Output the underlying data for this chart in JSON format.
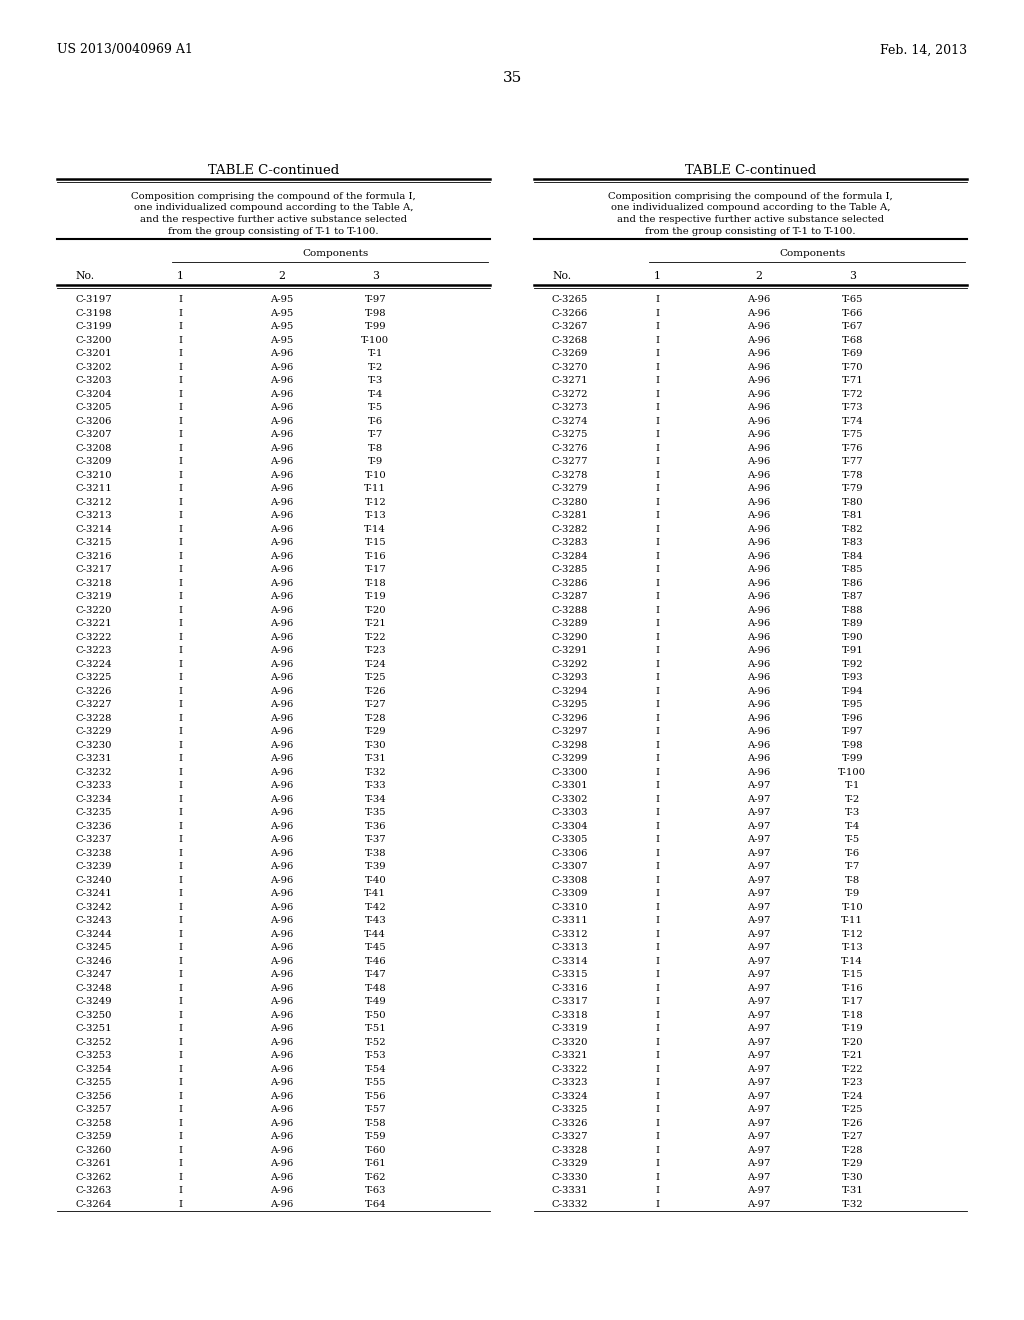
{
  "header_left": "US 2013/0040969 A1",
  "header_right": "Feb. 14, 2013",
  "page_number": "35",
  "table_title": "TABLE C-continued",
  "table_description_lines": [
    "Composition comprising the compound of the formula I,",
    "one individualized compound according to the Table A,",
    "and the respective further active substance selected",
    "from the group consisting of T-1 to T-100."
  ],
  "col_headers": [
    "No.",
    "1",
    "2",
    "3"
  ],
  "components_label": "Components",
  "left_table": [
    [
      "C-3197",
      "I",
      "A-95",
      "T-97"
    ],
    [
      "C-3198",
      "I",
      "A-95",
      "T-98"
    ],
    [
      "C-3199",
      "I",
      "A-95",
      "T-99"
    ],
    [
      "C-3200",
      "I",
      "A-95",
      "T-100"
    ],
    [
      "C-3201",
      "I",
      "A-96",
      "T-1"
    ],
    [
      "C-3202",
      "I",
      "A-96",
      "T-2"
    ],
    [
      "C-3203",
      "I",
      "A-96",
      "T-3"
    ],
    [
      "C-3204",
      "I",
      "A-96",
      "T-4"
    ],
    [
      "C-3205",
      "I",
      "A-96",
      "T-5"
    ],
    [
      "C-3206",
      "I",
      "A-96",
      "T-6"
    ],
    [
      "C-3207",
      "I",
      "A-96",
      "T-7"
    ],
    [
      "C-3208",
      "I",
      "A-96",
      "T-8"
    ],
    [
      "C-3209",
      "I",
      "A-96",
      "T-9"
    ],
    [
      "C-3210",
      "I",
      "A-96",
      "T-10"
    ],
    [
      "C-3211",
      "I",
      "A-96",
      "T-11"
    ],
    [
      "C-3212",
      "I",
      "A-96",
      "T-12"
    ],
    [
      "C-3213",
      "I",
      "A-96",
      "T-13"
    ],
    [
      "C-3214",
      "I",
      "A-96",
      "T-14"
    ],
    [
      "C-3215",
      "I",
      "A-96",
      "T-15"
    ],
    [
      "C-3216",
      "I",
      "A-96",
      "T-16"
    ],
    [
      "C-3217",
      "I",
      "A-96",
      "T-17"
    ],
    [
      "C-3218",
      "I",
      "A-96",
      "T-18"
    ],
    [
      "C-3219",
      "I",
      "A-96",
      "T-19"
    ],
    [
      "C-3220",
      "I",
      "A-96",
      "T-20"
    ],
    [
      "C-3221",
      "I",
      "A-96",
      "T-21"
    ],
    [
      "C-3222",
      "I",
      "A-96",
      "T-22"
    ],
    [
      "C-3223",
      "I",
      "A-96",
      "T-23"
    ],
    [
      "C-3224",
      "I",
      "A-96",
      "T-24"
    ],
    [
      "C-3225",
      "I",
      "A-96",
      "T-25"
    ],
    [
      "C-3226",
      "I",
      "A-96",
      "T-26"
    ],
    [
      "C-3227",
      "I",
      "A-96",
      "T-27"
    ],
    [
      "C-3228",
      "I",
      "A-96",
      "T-28"
    ],
    [
      "C-3229",
      "I",
      "A-96",
      "T-29"
    ],
    [
      "C-3230",
      "I",
      "A-96",
      "T-30"
    ],
    [
      "C-3231",
      "I",
      "A-96",
      "T-31"
    ],
    [
      "C-3232",
      "I",
      "A-96",
      "T-32"
    ],
    [
      "C-3233",
      "I",
      "A-96",
      "T-33"
    ],
    [
      "C-3234",
      "I",
      "A-96",
      "T-34"
    ],
    [
      "C-3235",
      "I",
      "A-96",
      "T-35"
    ],
    [
      "C-3236",
      "I",
      "A-96",
      "T-36"
    ],
    [
      "C-3237",
      "I",
      "A-96",
      "T-37"
    ],
    [
      "C-3238",
      "I",
      "A-96",
      "T-38"
    ],
    [
      "C-3239",
      "I",
      "A-96",
      "T-39"
    ],
    [
      "C-3240",
      "I",
      "A-96",
      "T-40"
    ],
    [
      "C-3241",
      "I",
      "A-96",
      "T-41"
    ],
    [
      "C-3242",
      "I",
      "A-96",
      "T-42"
    ],
    [
      "C-3243",
      "I",
      "A-96",
      "T-43"
    ],
    [
      "C-3244",
      "I",
      "A-96",
      "T-44"
    ],
    [
      "C-3245",
      "I",
      "A-96",
      "T-45"
    ],
    [
      "C-3246",
      "I",
      "A-96",
      "T-46"
    ],
    [
      "C-3247",
      "I",
      "A-96",
      "T-47"
    ],
    [
      "C-3248",
      "I",
      "A-96",
      "T-48"
    ],
    [
      "C-3249",
      "I",
      "A-96",
      "T-49"
    ],
    [
      "C-3250",
      "I",
      "A-96",
      "T-50"
    ],
    [
      "C-3251",
      "I",
      "A-96",
      "T-51"
    ],
    [
      "C-3252",
      "I",
      "A-96",
      "T-52"
    ],
    [
      "C-3253",
      "I",
      "A-96",
      "T-53"
    ],
    [
      "C-3254",
      "I",
      "A-96",
      "T-54"
    ],
    [
      "C-3255",
      "I",
      "A-96",
      "T-55"
    ],
    [
      "C-3256",
      "I",
      "A-96",
      "T-56"
    ],
    [
      "C-3257",
      "I",
      "A-96",
      "T-57"
    ],
    [
      "C-3258",
      "I",
      "A-96",
      "T-58"
    ],
    [
      "C-3259",
      "I",
      "A-96",
      "T-59"
    ],
    [
      "C-3260",
      "I",
      "A-96",
      "T-60"
    ],
    [
      "C-3261",
      "I",
      "A-96",
      "T-61"
    ],
    [
      "C-3262",
      "I",
      "A-96",
      "T-62"
    ],
    [
      "C-3263",
      "I",
      "A-96",
      "T-63"
    ],
    [
      "C-3264",
      "I",
      "A-96",
      "T-64"
    ]
  ],
  "right_table": [
    [
      "C-3265",
      "I",
      "A-96",
      "T-65"
    ],
    [
      "C-3266",
      "I",
      "A-96",
      "T-66"
    ],
    [
      "C-3267",
      "I",
      "A-96",
      "T-67"
    ],
    [
      "C-3268",
      "I",
      "A-96",
      "T-68"
    ],
    [
      "C-3269",
      "I",
      "A-96",
      "T-69"
    ],
    [
      "C-3270",
      "I",
      "A-96",
      "T-70"
    ],
    [
      "C-3271",
      "I",
      "A-96",
      "T-71"
    ],
    [
      "C-3272",
      "I",
      "A-96",
      "T-72"
    ],
    [
      "C-3273",
      "I",
      "A-96",
      "T-73"
    ],
    [
      "C-3274",
      "I",
      "A-96",
      "T-74"
    ],
    [
      "C-3275",
      "I",
      "A-96",
      "T-75"
    ],
    [
      "C-3276",
      "I",
      "A-96",
      "T-76"
    ],
    [
      "C-3277",
      "I",
      "A-96",
      "T-77"
    ],
    [
      "C-3278",
      "I",
      "A-96",
      "T-78"
    ],
    [
      "C-3279",
      "I",
      "A-96",
      "T-79"
    ],
    [
      "C-3280",
      "I",
      "A-96",
      "T-80"
    ],
    [
      "C-3281",
      "I",
      "A-96",
      "T-81"
    ],
    [
      "C-3282",
      "I",
      "A-96",
      "T-82"
    ],
    [
      "C-3283",
      "I",
      "A-96",
      "T-83"
    ],
    [
      "C-3284",
      "I",
      "A-96",
      "T-84"
    ],
    [
      "C-3285",
      "I",
      "A-96",
      "T-85"
    ],
    [
      "C-3286",
      "I",
      "A-96",
      "T-86"
    ],
    [
      "C-3287",
      "I",
      "A-96",
      "T-87"
    ],
    [
      "C-3288",
      "I",
      "A-96",
      "T-88"
    ],
    [
      "C-3289",
      "I",
      "A-96",
      "T-89"
    ],
    [
      "C-3290",
      "I",
      "A-96",
      "T-90"
    ],
    [
      "C-3291",
      "I",
      "A-96",
      "T-91"
    ],
    [
      "C-3292",
      "I",
      "A-96",
      "T-92"
    ],
    [
      "C-3293",
      "I",
      "A-96",
      "T-93"
    ],
    [
      "C-3294",
      "I",
      "A-96",
      "T-94"
    ],
    [
      "C-3295",
      "I",
      "A-96",
      "T-95"
    ],
    [
      "C-3296",
      "I",
      "A-96",
      "T-96"
    ],
    [
      "C-3297",
      "I",
      "A-96",
      "T-97"
    ],
    [
      "C-3298",
      "I",
      "A-96",
      "T-98"
    ],
    [
      "C-3299",
      "I",
      "A-96",
      "T-99"
    ],
    [
      "C-3300",
      "I",
      "A-96",
      "T-100"
    ],
    [
      "C-3301",
      "I",
      "A-97",
      "T-1"
    ],
    [
      "C-3302",
      "I",
      "A-97",
      "T-2"
    ],
    [
      "C-3303",
      "I",
      "A-97",
      "T-3"
    ],
    [
      "C-3304",
      "I",
      "A-97",
      "T-4"
    ],
    [
      "C-3305",
      "I",
      "A-97",
      "T-5"
    ],
    [
      "C-3306",
      "I",
      "A-97",
      "T-6"
    ],
    [
      "C-3307",
      "I",
      "A-97",
      "T-7"
    ],
    [
      "C-3308",
      "I",
      "A-97",
      "T-8"
    ],
    [
      "C-3309",
      "I",
      "A-97",
      "T-9"
    ],
    [
      "C-3310",
      "I",
      "A-97",
      "T-10"
    ],
    [
      "C-3311",
      "I",
      "A-97",
      "T-11"
    ],
    [
      "C-3312",
      "I",
      "A-97",
      "T-12"
    ],
    [
      "C-3313",
      "I",
      "A-97",
      "T-13"
    ],
    [
      "C-3314",
      "I",
      "A-97",
      "T-14"
    ],
    [
      "C-3315",
      "I",
      "A-97",
      "T-15"
    ],
    [
      "C-3316",
      "I",
      "A-97",
      "T-16"
    ],
    [
      "C-3317",
      "I",
      "A-97",
      "T-17"
    ],
    [
      "C-3318",
      "I",
      "A-97",
      "T-18"
    ],
    [
      "C-3319",
      "I",
      "A-97",
      "T-19"
    ],
    [
      "C-3320",
      "I",
      "A-97",
      "T-20"
    ],
    [
      "C-3321",
      "I",
      "A-97",
      "T-21"
    ],
    [
      "C-3322",
      "I",
      "A-97",
      "T-22"
    ],
    [
      "C-3323",
      "I",
      "A-97",
      "T-23"
    ],
    [
      "C-3324",
      "I",
      "A-97",
      "T-24"
    ],
    [
      "C-3325",
      "I",
      "A-97",
      "T-25"
    ],
    [
      "C-3326",
      "I",
      "A-97",
      "T-26"
    ],
    [
      "C-3327",
      "I",
      "A-97",
      "T-27"
    ],
    [
      "C-3328",
      "I",
      "A-97",
      "T-28"
    ],
    [
      "C-3329",
      "I",
      "A-97",
      "T-29"
    ],
    [
      "C-3330",
      "I",
      "A-97",
      "T-30"
    ],
    [
      "C-3331",
      "I",
      "A-97",
      "T-31"
    ],
    [
      "C-3332",
      "I",
      "A-97",
      "T-32"
    ]
  ]
}
